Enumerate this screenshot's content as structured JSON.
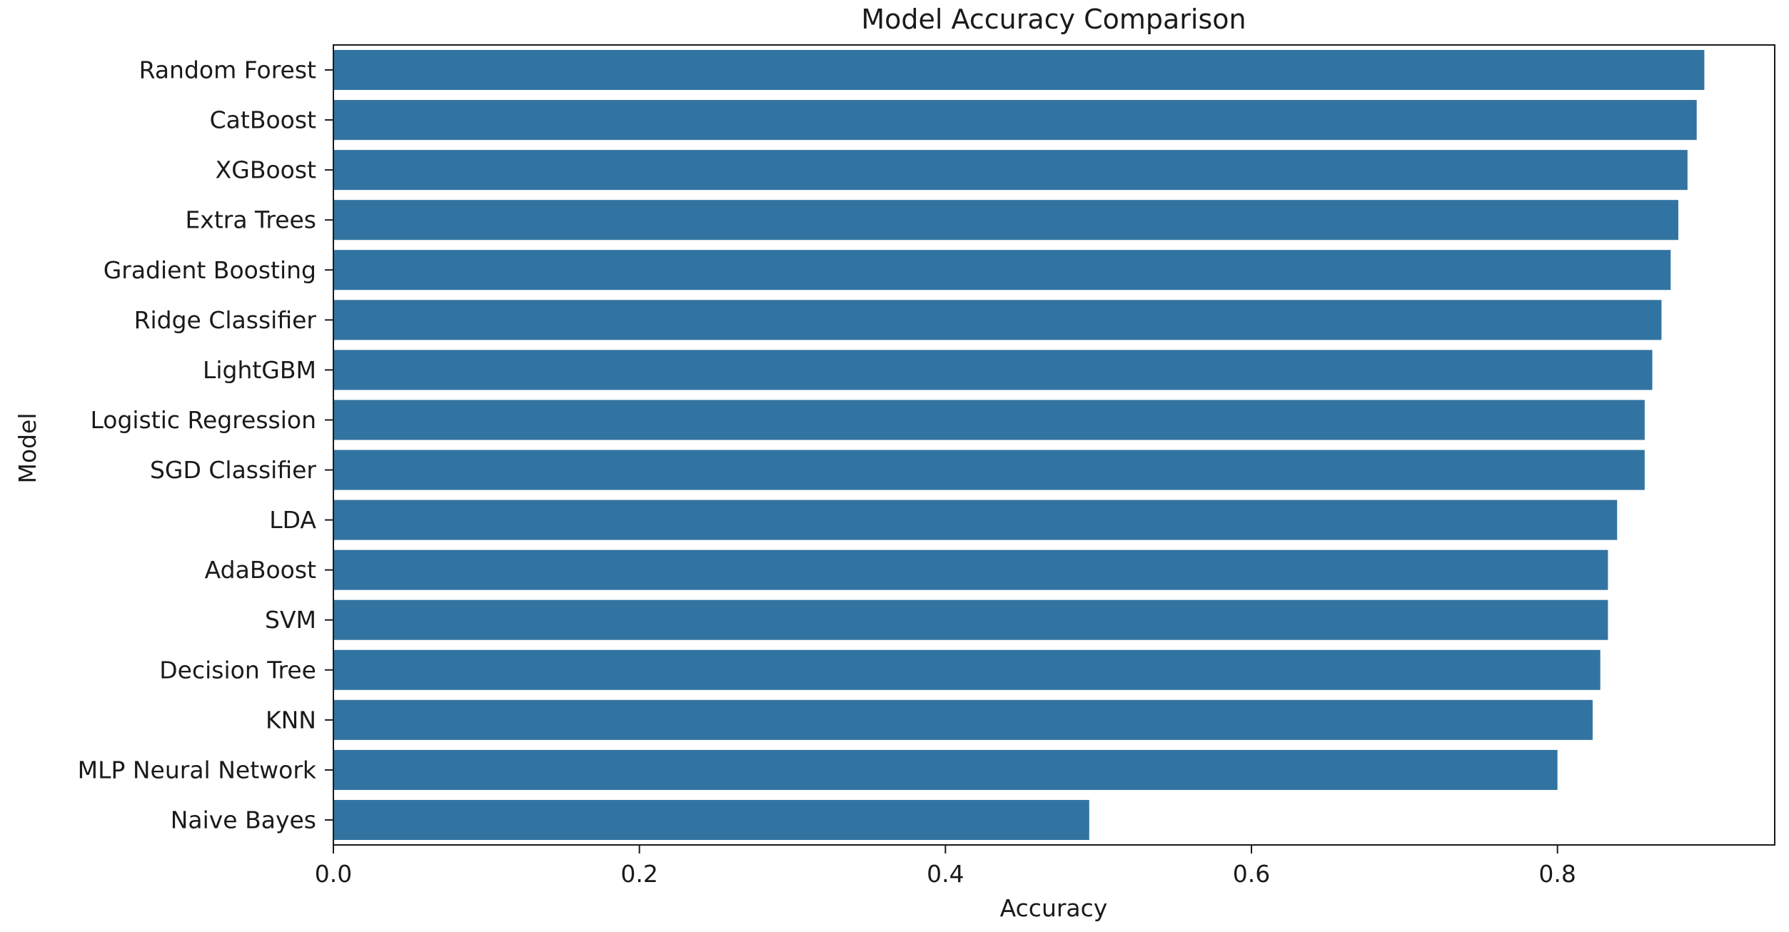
{
  "chart_data": {
    "type": "bar",
    "orientation": "horizontal",
    "title": "Model Accuracy Comparison",
    "xlabel": "Accuracy",
    "ylabel": "Model",
    "xlim": [
      0,
      0.942
    ],
    "x_ticks": [
      {
        "value": 0.0,
        "label": "0.0"
      },
      {
        "value": 0.2,
        "label": "0.2"
      },
      {
        "value": 0.4,
        "label": "0.4"
      },
      {
        "value": 0.6,
        "label": "0.6"
      },
      {
        "value": 0.8,
        "label": "0.8"
      }
    ],
    "categories": [
      "Random Forest",
      "CatBoost",
      "XGBoost",
      "Extra Trees",
      "Gradient Boosting",
      "Ridge Classifier",
      "LightGBM",
      "Logistic Regression",
      "SGD Classifier",
      "LDA",
      "AdaBoost",
      "SVM",
      "Decision Tree",
      "KNN",
      "MLP Neural Network",
      "Naive Bayes"
    ],
    "values": [
      0.896,
      0.891,
      0.885,
      0.879,
      0.874,
      0.868,
      0.862,
      0.857,
      0.857,
      0.839,
      0.833,
      0.833,
      0.828,
      0.823,
      0.8,
      0.494
    ],
    "bar_color": "#3274a1",
    "grid": false,
    "legend": "none"
  }
}
